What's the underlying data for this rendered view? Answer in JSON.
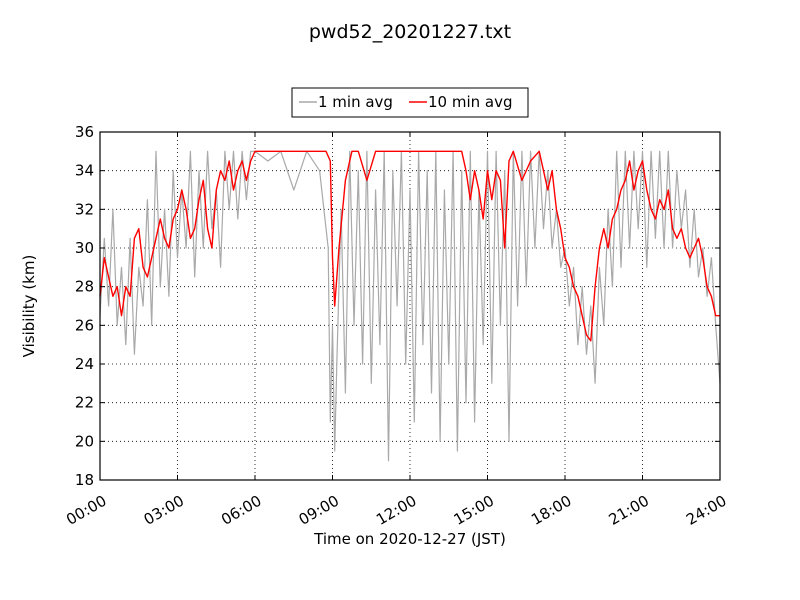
{
  "chart_data": {
    "type": "line",
    "title": "pwd52_20201227.txt",
    "xlabel": "Time on 2020-12-27 (JST)",
    "ylabel": "Visibility (km)",
    "xlim": [
      "00:00",
      "24:00"
    ],
    "ylim": [
      18,
      36
    ],
    "xticks": [
      "00:00",
      "03:00",
      "06:00",
      "09:00",
      "12:00",
      "15:00",
      "18:00",
      "21:00",
      "24:00"
    ],
    "yticks": [
      18,
      20,
      22,
      24,
      26,
      28,
      30,
      32,
      34,
      36
    ],
    "grid": true,
    "legend": "top-center",
    "series": [
      {
        "name": "1 min avg",
        "color": "#a9a9a9",
        "x": [
          "00:00",
          "00:10",
          "00:20",
          "00:30",
          "00:40",
          "00:50",
          "01:00",
          "01:10",
          "01:20",
          "01:30",
          "01:40",
          "01:50",
          "02:00",
          "02:10",
          "02:20",
          "02:30",
          "02:40",
          "02:50",
          "03:00",
          "03:10",
          "03:20",
          "03:30",
          "03:40",
          "03:50",
          "04:00",
          "04:10",
          "04:20",
          "04:30",
          "04:40",
          "04:50",
          "05:00",
          "05:10",
          "05:20",
          "05:30",
          "05:40",
          "05:50",
          "06:00",
          "06:30",
          "07:00",
          "07:30",
          "08:00",
          "08:30",
          "08:50",
          "08:55",
          "09:00",
          "09:05",
          "09:10",
          "09:20",
          "09:30",
          "09:40",
          "09:50",
          "10:00",
          "10:10",
          "10:20",
          "10:30",
          "10:40",
          "10:50",
          "11:00",
          "11:10",
          "11:20",
          "11:30",
          "11:40",
          "11:50",
          "12:00",
          "12:10",
          "12:20",
          "12:30",
          "12:40",
          "12:50",
          "13:00",
          "13:10",
          "13:20",
          "13:30",
          "13:40",
          "13:50",
          "14:00",
          "14:10",
          "14:20",
          "14:30",
          "14:40",
          "14:50",
          "15:00",
          "15:10",
          "15:20",
          "15:30",
          "15:40",
          "15:50",
          "16:00",
          "16:10",
          "16:20",
          "16:30",
          "16:40",
          "16:50",
          "17:00",
          "17:10",
          "17:20",
          "17:30",
          "17:40",
          "17:50",
          "18:00",
          "18:10",
          "18:20",
          "18:30",
          "18:40",
          "18:50",
          "19:00",
          "19:10",
          "19:20",
          "19:30",
          "19:40",
          "19:50",
          "20:00",
          "20:10",
          "20:20",
          "20:30",
          "20:40",
          "20:50",
          "21:00",
          "21:10",
          "21:20",
          "21:30",
          "21:40",
          "21:50",
          "22:00",
          "22:10",
          "22:20",
          "22:30",
          "22:40",
          "22:50",
          "23:00",
          "23:10",
          "23:20",
          "23:30",
          "23:40",
          "23:50",
          "24:00"
        ],
        "values": [
          26.5,
          30.5,
          27.0,
          32.0,
          26.0,
          29.0,
          25.0,
          30.5,
          24.5,
          29.0,
          27.0,
          32.5,
          26.0,
          35.0,
          28.0,
          32.0,
          27.5,
          34.0,
          29.5,
          33.0,
          30.0,
          35.0,
          28.5,
          34.0,
          30.0,
          35.0,
          31.0,
          33.0,
          29.0,
          35.0,
          32.0,
          35.0,
          31.5,
          35.0,
          32.5,
          35.0,
          35.0,
          34.5,
          35.0,
          33.0,
          35.0,
          34.0,
          30.0,
          21.0,
          26.0,
          19.5,
          24.0,
          32.0,
          22.5,
          35.0,
          26.0,
          34.0,
          24.0,
          35.0,
          23.0,
          33.0,
          25.0,
          35.0,
          19.0,
          34.0,
          27.0,
          35.0,
          24.0,
          33.0,
          21.0,
          35.0,
          25.0,
          34.0,
          22.5,
          35.0,
          20.0,
          33.0,
          24.0,
          35.0,
          19.5,
          34.0,
          22.0,
          35.0,
          21.0,
          33.0,
          25.0,
          35.0,
          23.0,
          35.0,
          26.0,
          34.0,
          20.0,
          35.0,
          27.0,
          35.0,
          28.0,
          35.0,
          30.0,
          35.0,
          31.0,
          34.0,
          30.0,
          32.0,
          29.0,
          30.0,
          27.0,
          29.0,
          25.0,
          28.0,
          24.5,
          27.0,
          23.0,
          29.0,
          26.0,
          32.0,
          28.0,
          35.0,
          29.0,
          35.0,
          30.0,
          35.0,
          31.0,
          35.0,
          29.0,
          35.0,
          30.5,
          35.0,
          30.0,
          35.0,
          30.0,
          34.0,
          31.0,
          33.0,
          29.0,
          32.0,
          28.5,
          30.0,
          27.5,
          29.5,
          26.0,
          23.0
        ]
      },
      {
        "name": "10 min avg",
        "color": "#ff0000",
        "x": [
          "00:00",
          "00:10",
          "00:20",
          "00:30",
          "00:40",
          "00:50",
          "01:00",
          "01:10",
          "01:20",
          "01:30",
          "01:40",
          "01:50",
          "02:00",
          "02:10",
          "02:20",
          "02:30",
          "02:40",
          "02:50",
          "03:00",
          "03:10",
          "03:20",
          "03:30",
          "03:40",
          "03:50",
          "04:00",
          "04:10",
          "04:20",
          "04:30",
          "04:40",
          "04:50",
          "05:00",
          "05:10",
          "05:20",
          "05:30",
          "05:40",
          "05:50",
          "06:00",
          "06:20",
          "07:00",
          "08:00",
          "08:45",
          "08:55",
          "09:00",
          "09:05",
          "09:15",
          "09:30",
          "09:45",
          "10:00",
          "10:20",
          "10:40",
          "11:00",
          "11:20",
          "11:40",
          "12:00",
          "12:30",
          "13:00",
          "13:30",
          "14:00",
          "14:10",
          "14:20",
          "14:30",
          "14:40",
          "14:50",
          "15:00",
          "15:10",
          "15:20",
          "15:30",
          "15:40",
          "15:50",
          "16:00",
          "16:20",
          "16:40",
          "17:00",
          "17:10",
          "17:20",
          "17:30",
          "17:40",
          "17:50",
          "18:00",
          "18:10",
          "18:20",
          "18:30",
          "18:40",
          "18:50",
          "19:00",
          "19:10",
          "19:20",
          "19:30",
          "19:40",
          "19:50",
          "20:00",
          "20:10",
          "20:20",
          "20:30",
          "20:40",
          "20:50",
          "21:00",
          "21:10",
          "21:20",
          "21:30",
          "21:40",
          "21:50",
          "22:00",
          "22:10",
          "22:20",
          "22:30",
          "22:40",
          "22:50",
          "23:00",
          "23:10",
          "23:20",
          "23:30",
          "23:40",
          "23:50",
          "24:00"
        ],
        "values": [
          27.5,
          29.5,
          28.5,
          27.5,
          28.0,
          26.5,
          28.0,
          27.5,
          30.5,
          31.0,
          29.0,
          28.5,
          29.5,
          30.5,
          31.5,
          30.5,
          30.0,
          31.5,
          32.0,
          33.0,
          32.0,
          30.5,
          31.0,
          32.5,
          33.5,
          31.0,
          30.0,
          33.0,
          34.0,
          33.5,
          34.5,
          33.0,
          34.0,
          34.5,
          33.5,
          34.5,
          35.0,
          35.0,
          35.0,
          35.0,
          35.0,
          34.5,
          29.5,
          27.0,
          30.0,
          33.5,
          35.0,
          35.0,
          33.5,
          35.0,
          35.0,
          35.0,
          35.0,
          35.0,
          35.0,
          35.0,
          35.0,
          35.0,
          34.0,
          32.5,
          34.0,
          33.0,
          31.5,
          34.0,
          32.5,
          34.0,
          33.5,
          30.0,
          34.5,
          35.0,
          33.5,
          34.5,
          35.0,
          34.0,
          33.0,
          34.0,
          32.0,
          31.0,
          29.5,
          29.0,
          28.0,
          27.5,
          26.5,
          25.5,
          25.2,
          28.0,
          30.0,
          31.0,
          30.0,
          31.5,
          32.0,
          33.0,
          33.5,
          34.5,
          33.0,
          34.0,
          34.5,
          33.0,
          32.0,
          31.5,
          32.5,
          32.0,
          33.0,
          31.0,
          30.5,
          31.0,
          30.0,
          29.5,
          30.0,
          30.5,
          29.5,
          28.0,
          27.5,
          26.5,
          26.5
        ]
      }
    ]
  }
}
